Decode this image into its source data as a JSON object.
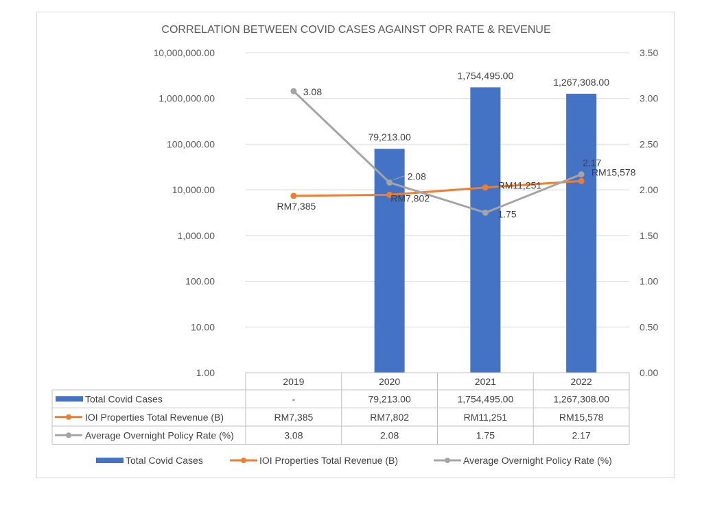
{
  "chart_data": {
    "type": "bar",
    "title": "CORRELATION BETWEEN COVID CASES AGAINST OPR RATE & REVENUE",
    "categories": [
      "2019",
      "2020",
      "2021",
      "2022"
    ],
    "left_axis": {
      "scale": "log",
      "ylim": [
        1,
        10000000
      ],
      "tick_labels": [
        "10,000,000.00",
        "1,000,000.00",
        "100,000.00",
        "10,000.00",
        "1,000.00",
        "100.00",
        "10.00",
        "1.00"
      ]
    },
    "right_axis": {
      "scale": "linear",
      "ylim": [
        0,
        3.5
      ],
      "tick_labels": [
        "3.50",
        "3.00",
        "2.50",
        "2.00",
        "1.50",
        "1.00",
        "0.50",
        "0.00"
      ]
    },
    "series": [
      {
        "name": "Total Covid Cases",
        "type": "bar",
        "axis": "left",
        "color": "#4472c4",
        "values": [
          null,
          79213,
          1754495,
          1267308
        ],
        "labels": [
          "",
          "79,213.00",
          "1,754,495.00",
          "1,267,308.00"
        ],
        "table_cells": [
          "-",
          "79,213.00",
          "1,754,495.00",
          "1,267,308.00"
        ]
      },
      {
        "name": "IOI Properties Total Revenue (B)",
        "type": "line",
        "axis": "left",
        "color": "#ed7d31",
        "values": [
          7385,
          7802,
          11251,
          15578
        ],
        "labels": [
          "RM7,385",
          "RM7,802",
          "RM11,251",
          "RM15,578"
        ],
        "table_cells": [
          "RM7,385",
          "RM7,802",
          "RM11,251",
          "RM15,578"
        ]
      },
      {
        "name": "Average Overnight Policy Rate (%)",
        "type": "line",
        "axis": "right",
        "color": "#a5a5a5",
        "values": [
          3.08,
          2.08,
          1.75,
          2.17
        ],
        "labels": [
          "3.08",
          "2.08",
          "1.75",
          "2.17"
        ],
        "table_cells": [
          "3.08",
          "2.08",
          "1.75",
          "2.17"
        ]
      }
    ],
    "legend": {
      "position": "bottom"
    },
    "data_table": true,
    "grid": true
  }
}
